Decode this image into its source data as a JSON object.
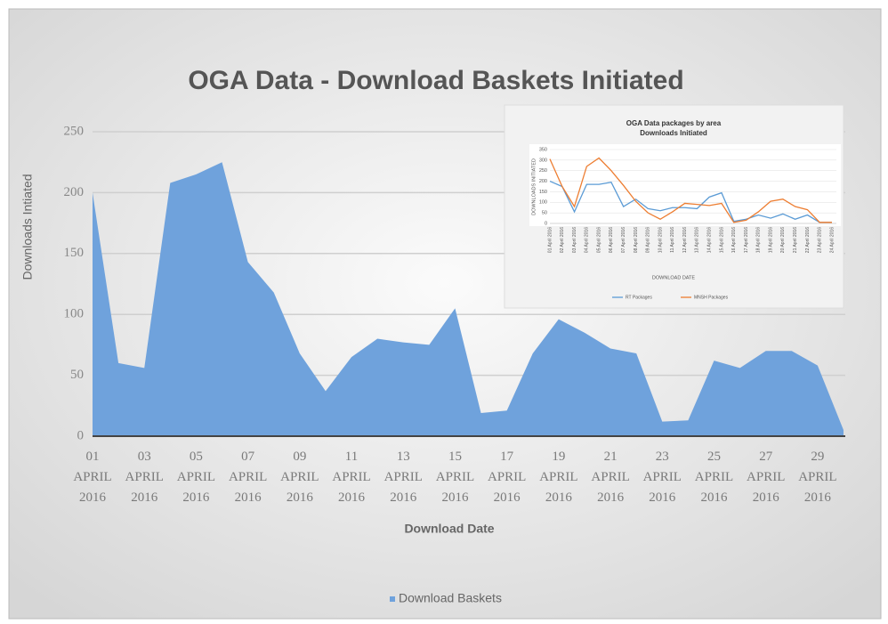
{
  "chart_data": [
    {
      "type": "area",
      "title": "OGA Data - Download Baskets Initiated",
      "y_label": "Downloads Intiated",
      "x_label": "Download Date",
      "categories": [
        "01 APRIL 2016",
        null,
        "03 APRIL 2016",
        null,
        "05 APRIL 2016",
        null,
        "07 APRIL 2016",
        null,
        "09 APRIL 2016",
        null,
        "11 APRIL 2016",
        null,
        "13 APRIL 2016",
        null,
        "15 APRIL 2016",
        null,
        "17 APRIL 2016",
        null,
        "19 APRIL 2016",
        null,
        "21 APRIL 2016",
        null,
        "23 APRIL 2016",
        null,
        "25 APRIL 2016",
        null,
        "27 APRIL 2016",
        null,
        "29 APRIL 2016",
        null
      ],
      "series": [
        {
          "name": "Download Baskets",
          "color": "#6fa2dc",
          "values": [
            200,
            60,
            56,
            208,
            215,
            225,
            143,
            118,
            68,
            37,
            65,
            80,
            77,
            75,
            105,
            19,
            21,
            68,
            96,
            85,
            72,
            68,
            12,
            13,
            62,
            56,
            70,
            70,
            58,
            5
          ]
        }
      ],
      "ylim": [
        0,
        250
      ],
      "yticks": [
        0,
        50,
        100,
        150,
        200,
        250
      ],
      "grid": true,
      "legend": "bottom"
    },
    {
      "type": "line",
      "title": "OGA Data packages by area",
      "subtitle": "Downloads Initiated",
      "y_label": "DOWNLOADS INITIATED",
      "x_label": "DOWNLOAD DATE",
      "categories": [
        "01 April 2016",
        "02 April 2016",
        "03 April 2016",
        "04 April 2016",
        "05 April 2016",
        "06 April 2016",
        "07 April 2016",
        "08 April 2016",
        "09 April 2016",
        "10 April 2016",
        "11 April 2016",
        "12 April 2016",
        "13 April 2016",
        "14 April 2016",
        "15 April 2016",
        "16 April 2016",
        "17 April 2016",
        "18 April 2016",
        "19 April 2016",
        "20 April 2016",
        "21 April 2016",
        "22 April 2016",
        "23 April 2016",
        "24 April 2016"
      ],
      "series": [
        {
          "name": "RT Packages",
          "color": "#5b9bd5",
          "values": [
            200,
            175,
            55,
            185,
            185,
            195,
            80,
            115,
            70,
            60,
            75,
            75,
            70,
            125,
            145,
            10,
            20,
            40,
            25,
            45,
            20,
            40,
            5,
            5
          ]
        },
        {
          "name": "MNSH Packages",
          "color": "#ed7d31",
          "values": [
            305,
            175,
            80,
            270,
            310,
            250,
            180,
            105,
            50,
            20,
            55,
            95,
            90,
            85,
            95,
            5,
            15,
            55,
            105,
            115,
            80,
            65,
            5,
            5
          ]
        }
      ],
      "ylim": [
        0,
        350
      ],
      "yticks": [
        0,
        50,
        100,
        150,
        200,
        250,
        300,
        350
      ],
      "grid": true,
      "legend": "bottom"
    }
  ]
}
